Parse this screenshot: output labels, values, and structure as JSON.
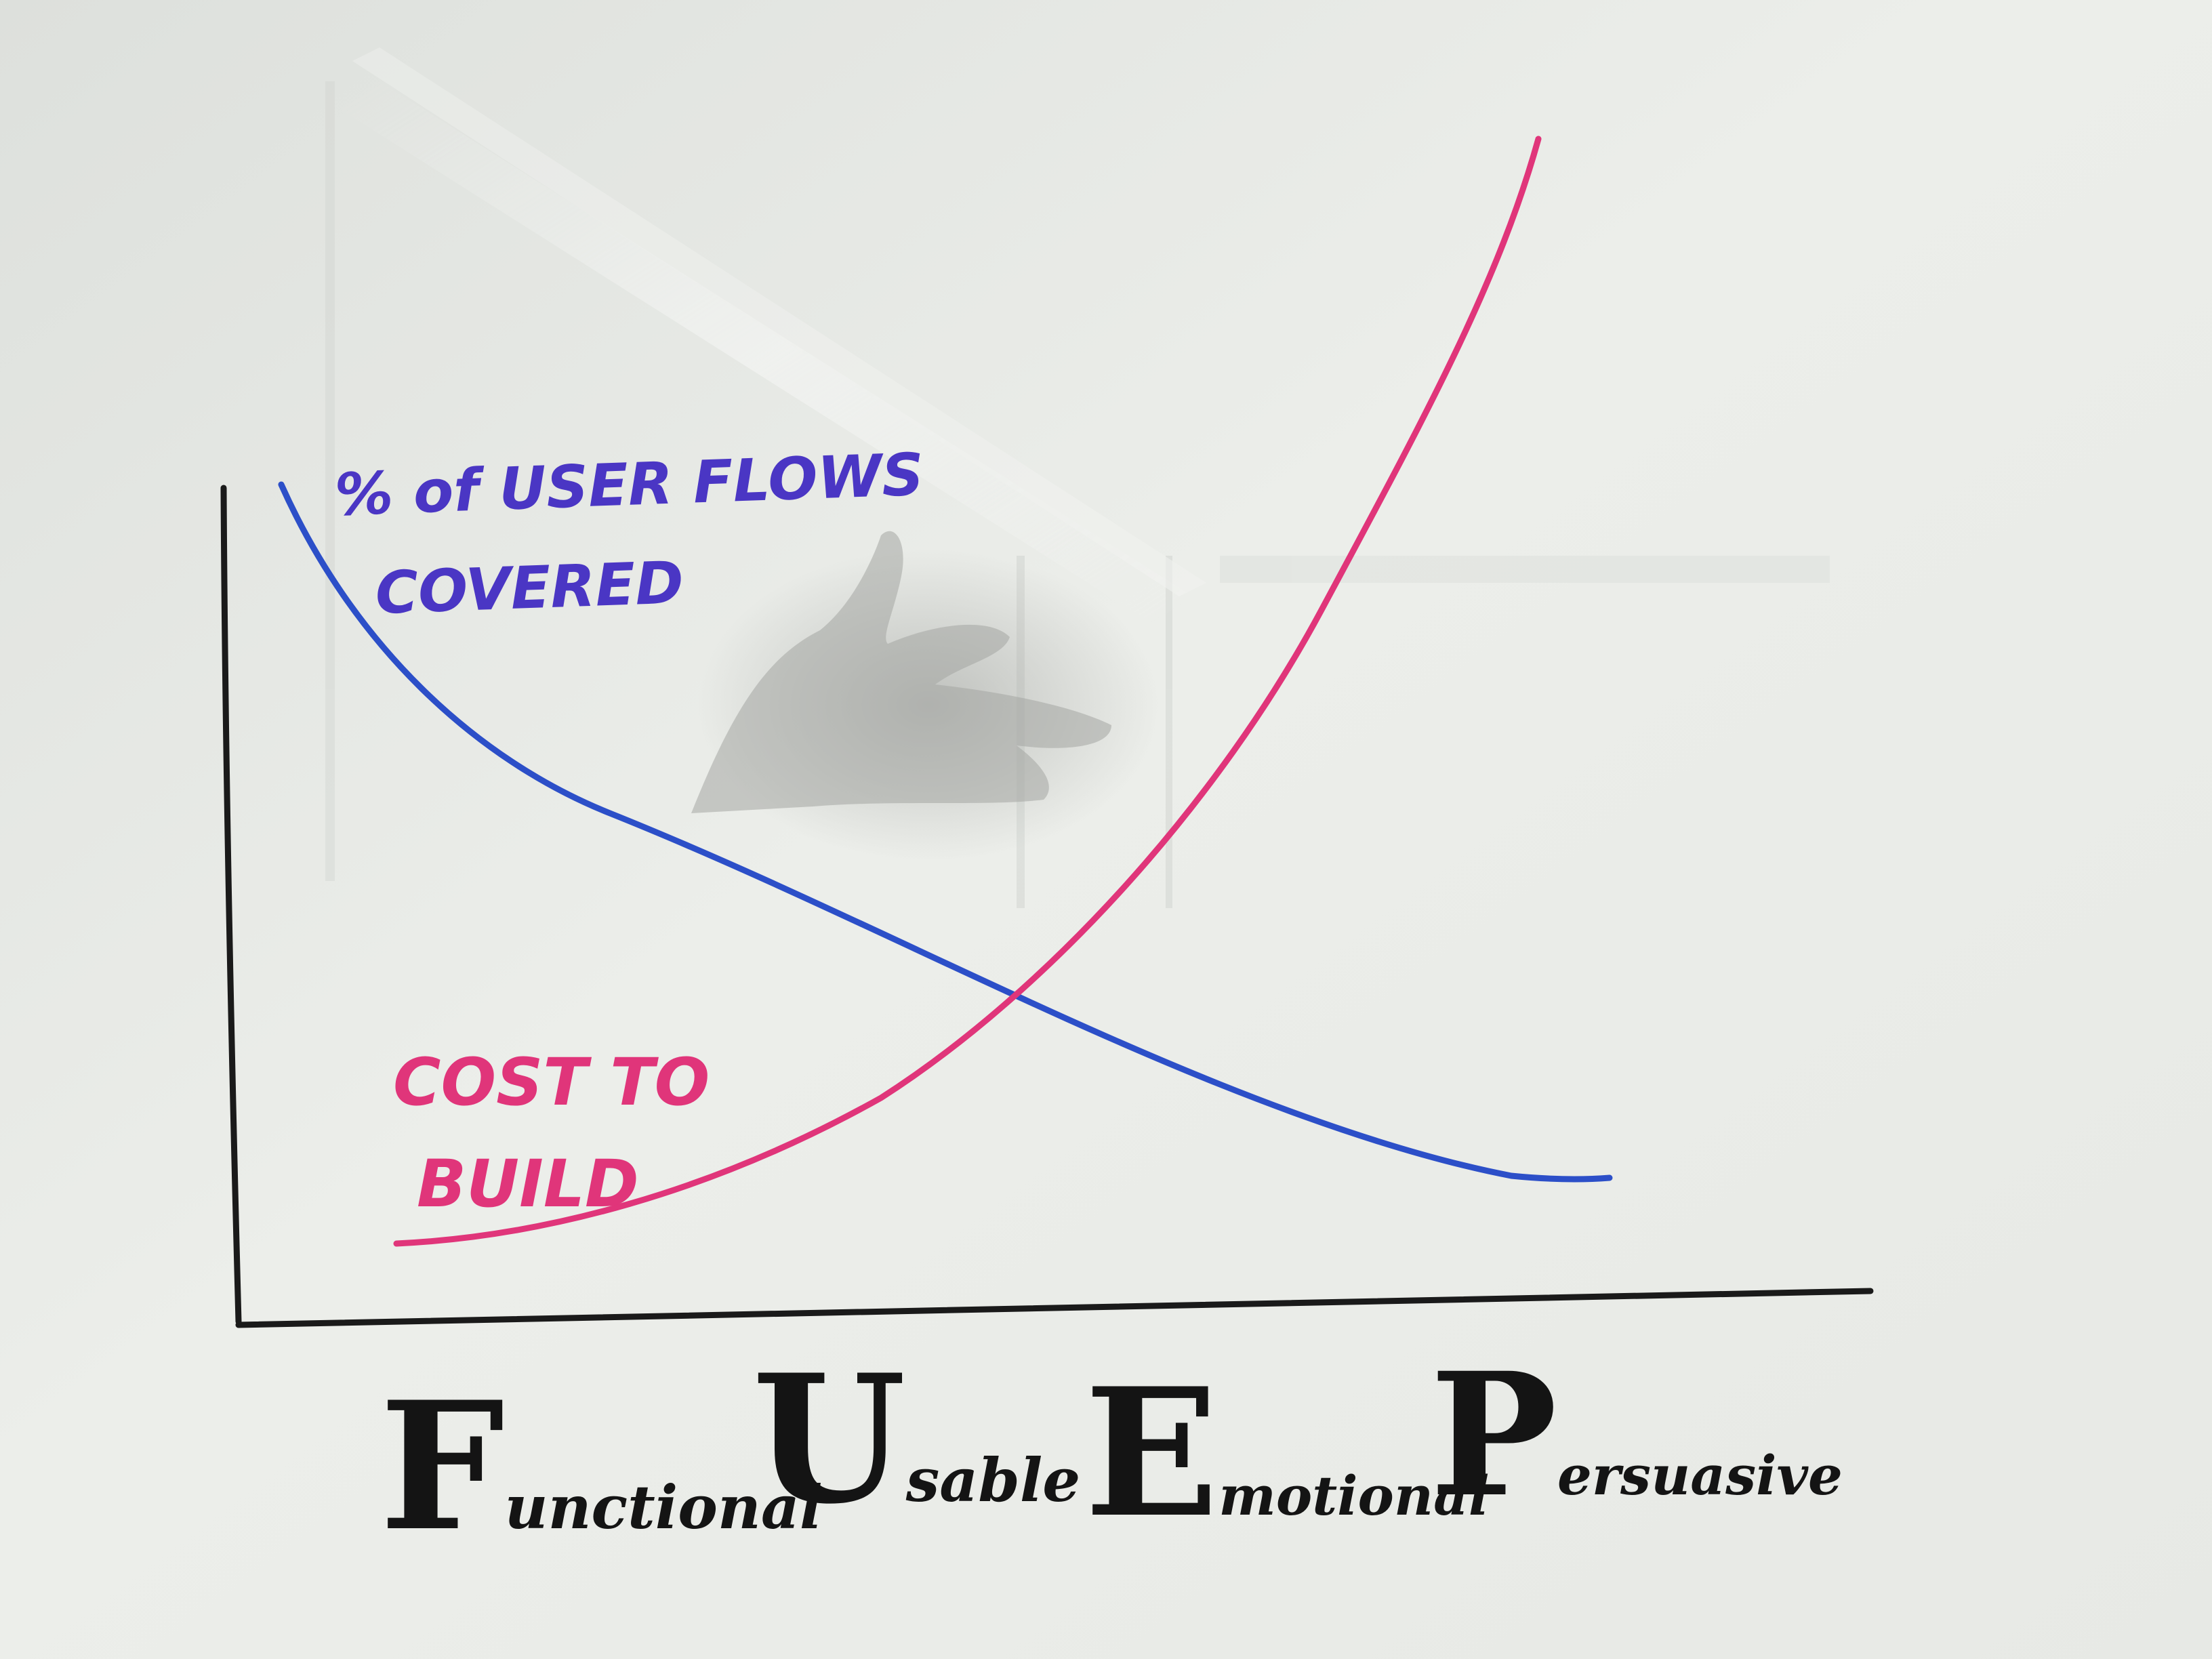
{
  "colors": {
    "board": "#e6e8e4",
    "axis": "#1a1a1a",
    "coverage_line": "#2c4fc8",
    "coverage_text": "#4a36c4",
    "cost_line": "#e0357a",
    "cost_text": "#e0357a",
    "label_ink": "#141414"
  },
  "annotations": {
    "coverage_line1": "% of USER FLOWS",
    "coverage_line2": "COVERED",
    "cost_line1": "COST TO",
    "cost_line2": "BUILD"
  },
  "x_labels": [
    {
      "initial": "F",
      "rest": "unctional"
    },
    {
      "initial": "U",
      "rest": "sable"
    },
    {
      "initial": "E",
      "rest": "motional"
    },
    {
      "initial": "P",
      "rest": "ersuasive"
    }
  ]
}
